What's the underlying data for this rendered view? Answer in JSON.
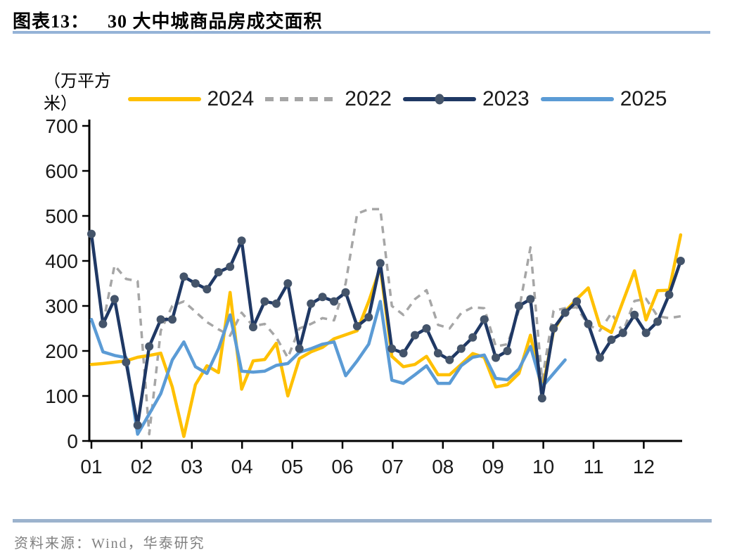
{
  "header": {
    "label": "图表13：",
    "title": "30 大中城商品房成交面积"
  },
  "footer": {
    "source": "资料来源：Wind，华泰研究"
  },
  "colors": {
    "accent_rule": "#95B3D7",
    "axis": "#000000",
    "tick_text": "#1a1a1a"
  },
  "chart_data": {
    "type": "line",
    "title": "30 大中城商品房成交面积",
    "unit_label": "（万平方米）",
    "x_unit": "week-of-year",
    "xlabel": "",
    "ylabel": "万平方米",
    "ylim": [
      0,
      700
    ],
    "grid": false,
    "legend_position": "top-center",
    "x_axis": {
      "tick_labels": [
        "01",
        "02",
        "03",
        "04",
        "05",
        "06",
        "07",
        "08",
        "09",
        "10",
        "11",
        "12"
      ]
    },
    "y_axis": {
      "min": 0,
      "max": 700,
      "step": 100,
      "tick_labels": [
        "0",
        "100",
        "200",
        "300",
        "400",
        "500",
        "600",
        "700"
      ]
    },
    "series": [
      {
        "name": "2024",
        "color": "#FFC000",
        "style": "solid",
        "marker": false,
        "z": 2,
        "values": [
          170,
          172,
          175,
          178,
          186,
          190,
          195,
          120,
          10,
          125,
          167,
          152,
          330,
          115,
          178,
          181,
          217,
          100,
          183,
          198,
          208,
          227,
          236,
          245,
          310,
          385,
          188,
          165,
          170,
          188,
          147,
          147,
          170,
          194,
          186,
          120,
          125,
          150,
          235,
          110,
          245,
          288,
          315,
          340,
          256,
          241,
          310,
          378,
          269,
          334,
          335,
          458
        ]
      },
      {
        "name": "2022",
        "color": "#A6A6A6",
        "style": "dashed",
        "marker": false,
        "z": 1,
        "values": [
          455,
          260,
          390,
          360,
          355,
          15,
          245,
          300,
          310,
          287,
          264,
          248,
          234,
          285,
          255,
          260,
          230,
          185,
          250,
          260,
          273,
          268,
          350,
          505,
          515,
          515,
          300,
          280,
          315,
          335,
          258,
          250,
          284,
          297,
          295,
          210,
          215,
          290,
          430,
          135,
          289,
          295,
          297,
          258,
          245,
          284,
          242,
          311,
          316,
          277,
          273,
          277
        ]
      },
      {
        "name": "2023",
        "color": "#1F3864",
        "style": "solid",
        "marker": true,
        "marker_color": "#44546A",
        "z": 4,
        "values": [
          460,
          260,
          315,
          175,
          35,
          210,
          270,
          270,
          365,
          350,
          337,
          375,
          387,
          445,
          253,
          310,
          305,
          350,
          205,
          305,
          320,
          310,
          330,
          255,
          275,
          395,
          205,
          195,
          235,
          250,
          195,
          180,
          205,
          230,
          270,
          185,
          200,
          300,
          315,
          95,
          250,
          285,
          310,
          260,
          185,
          225,
          240,
          280,
          240,
          265,
          325,
          400
        ]
      },
      {
        "name": "2025",
        "color": "#5B9BD5",
        "style": "solid",
        "marker": false,
        "z": 3,
        "values": [
          270,
          198,
          190,
          185,
          15,
          60,
          105,
          180,
          220,
          165,
          150,
          205,
          280,
          155,
          153,
          155,
          168,
          172,
          197,
          205,
          215,
          220,
          145,
          178,
          215,
          310,
          135,
          128,
          147,
          167,
          128,
          128,
          167,
          186,
          191,
          139,
          136,
          160,
          210,
          120,
          150,
          180
        ]
      }
    ]
  }
}
